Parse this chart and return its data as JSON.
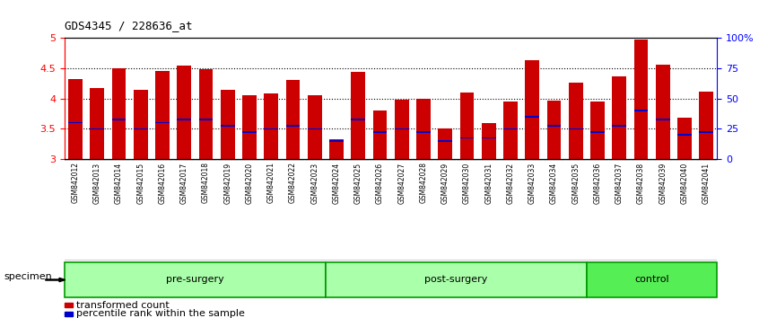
{
  "title": "GDS4345 / 228636_at",
  "samples": [
    "GSM842012",
    "GSM842013",
    "GSM842014",
    "GSM842015",
    "GSM842016",
    "GSM842017",
    "GSM842018",
    "GSM842019",
    "GSM842020",
    "GSM842021",
    "GSM842022",
    "GSM842023",
    "GSM842024",
    "GSM842025",
    "GSM842026",
    "GSM842027",
    "GSM842028",
    "GSM842029",
    "GSM842030",
    "GSM842031",
    "GSM842032",
    "GSM842033",
    "GSM842034",
    "GSM842035",
    "GSM842036",
    "GSM842037",
    "GSM842038",
    "GSM842039",
    "GSM842040",
    "GSM842041"
  ],
  "bar_values": [
    4.33,
    4.17,
    4.5,
    4.14,
    4.45,
    4.55,
    4.48,
    4.15,
    4.05,
    4.09,
    4.31,
    4.06,
    3.33,
    4.44,
    3.8,
    3.98,
    4.0,
    3.5,
    4.1,
    3.6,
    3.95,
    4.63,
    3.97,
    4.27,
    3.95,
    4.37,
    4.98,
    4.56,
    3.68,
    4.11
  ],
  "percentile_values": [
    3.6,
    3.5,
    3.65,
    3.5,
    3.6,
    3.65,
    3.65,
    3.55,
    3.45,
    3.5,
    3.55,
    3.5,
    3.3,
    3.65,
    3.45,
    3.5,
    3.45,
    3.3,
    3.35,
    3.35,
    3.5,
    3.7,
    3.55,
    3.5,
    3.45,
    3.55,
    3.8,
    3.65,
    3.4,
    3.45
  ],
  "group_labels": [
    "pre-surgery",
    "post-surgery",
    "control"
  ],
  "group_ranges": [
    [
      0,
      12
    ],
    [
      12,
      24
    ],
    [
      24,
      30
    ]
  ],
  "group_colors": [
    "#AAFFAA",
    "#AAFFAA",
    "#55EE55"
  ],
  "group_border_color": "#009900",
  "ymin": 3.0,
  "ymax": 5.0,
  "yticks": [
    3.0,
    3.5,
    4.0,
    4.5,
    5.0
  ],
  "ytick_labels_left": [
    "3",
    "3.5",
    "4",
    "4.5",
    "5"
  ],
  "right_axis_ticks": [
    0,
    25,
    50,
    75,
    100
  ],
  "right_axis_labels": [
    "0",
    "25",
    "50",
    "75",
    "100%"
  ],
  "bar_color": "#CC0000",
  "percentile_color": "#0000CC",
  "specimen_label": "specimen",
  "legend_items": [
    {
      "label": "transformed count",
      "color": "#CC0000"
    },
    {
      "label": "percentile rank within the sample",
      "color": "#0000CC"
    }
  ],
  "tick_bg_color": "#CCCCCC",
  "grid_dotted_color": "#333333"
}
